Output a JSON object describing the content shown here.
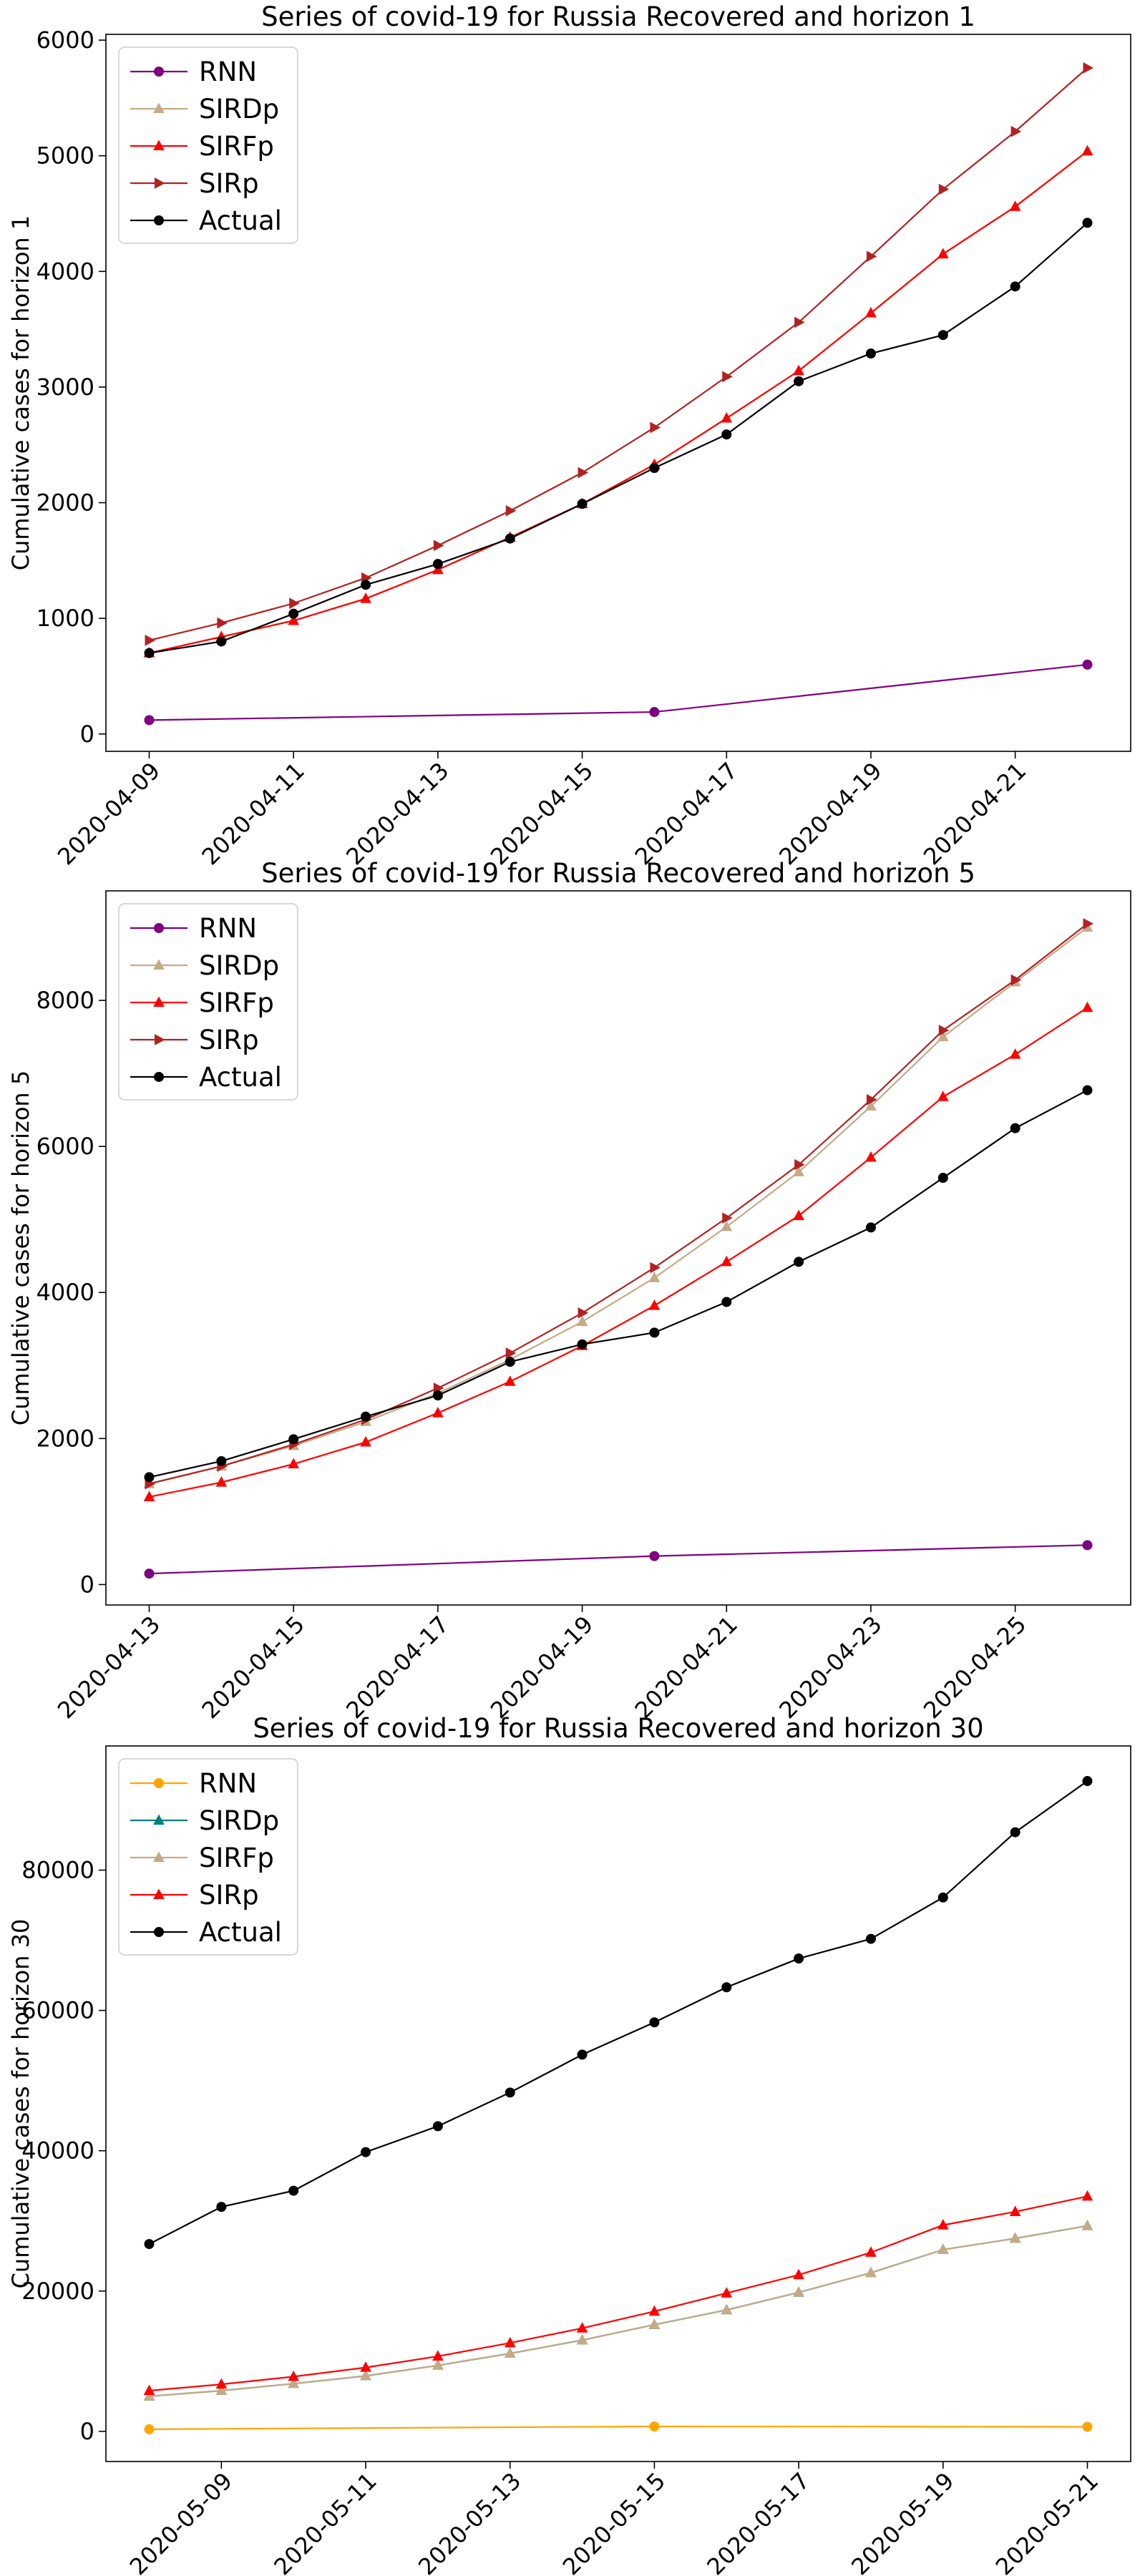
{
  "chart_data": [
    {
      "type": "line",
      "title": "Series of covid-19 for Russia Recovered and horizon 1",
      "xlabel": "",
      "ylabel": "Cumulative cases for horizon 1",
      "ylim": [
        -150,
        6050
      ],
      "yticks": [
        0,
        1000,
        2000,
        3000,
        4000,
        5000,
        6000
      ],
      "ytick_labels": [
        "0",
        "1000",
        "2000",
        "3000",
        "4000",
        "5000",
        "6000"
      ],
      "xlim": [
        "2020-04-08T09:36",
        "2020-04-22T14:24"
      ],
      "xtick_dates": [
        "2020-04-09",
        "2020-04-11",
        "2020-04-13",
        "2020-04-15",
        "2020-04-17",
        "2020-04-19",
        "2020-04-21"
      ],
      "xtick_labels": [
        "2020-04-09",
        "2020-04-11",
        "2020-04-13",
        "2020-04-15",
        "2020-04-17",
        "2020-04-19",
        "2020-04-21"
      ],
      "legend": "top-left",
      "grid": false,
      "series": [
        {
          "name": "RNN",
          "color": "#800080",
          "marker": "circle",
          "x": [
            "2020-04-09",
            "2020-04-16",
            "2020-04-22"
          ],
          "values": [
            120,
            190,
            600
          ]
        },
        {
          "name": "SIRDp",
          "color": "#c4aa88",
          "marker": "triangle-up",
          "x": [
            "2020-04-09",
            "2020-04-10",
            "2020-04-11",
            "2020-04-12",
            "2020-04-13",
            "2020-04-14",
            "2020-04-15",
            "2020-04-16",
            "2020-04-17",
            "2020-04-18",
            "2020-04-19",
            "2020-04-20",
            "2020-04-21",
            "2020-04-22"
          ],
          "values": [
            700,
            840,
            980,
            1170,
            1420,
            1700,
            1990,
            2330,
            2730,
            3140,
            3640,
            4150,
            4560,
            5040
          ]
        },
        {
          "name": "SIRFp",
          "color": "#ff0000",
          "marker": "triangle-up",
          "x": [
            "2020-04-09",
            "2020-04-10",
            "2020-04-11",
            "2020-04-12",
            "2020-04-13",
            "2020-04-14",
            "2020-04-15",
            "2020-04-16",
            "2020-04-17",
            "2020-04-18",
            "2020-04-19",
            "2020-04-20",
            "2020-04-21",
            "2020-04-22"
          ],
          "values": [
            700,
            840,
            980,
            1170,
            1420,
            1700,
            1990,
            2330,
            2730,
            3140,
            3640,
            4150,
            4560,
            5040
          ]
        },
        {
          "name": "SIRp",
          "color": "#b22222",
          "marker": "triangle-right",
          "x": [
            "2020-04-09",
            "2020-04-10",
            "2020-04-11",
            "2020-04-12",
            "2020-04-13",
            "2020-04-14",
            "2020-04-15",
            "2020-04-16",
            "2020-04-17",
            "2020-04-18",
            "2020-04-19",
            "2020-04-20",
            "2020-04-21",
            "2020-04-22"
          ],
          "values": [
            810,
            960,
            1130,
            1350,
            1630,
            1930,
            2260,
            2650,
            3090,
            3560,
            4130,
            4710,
            5210,
            5760
          ]
        },
        {
          "name": "Actual",
          "color": "#000000",
          "marker": "circle",
          "x": [
            "2020-04-09",
            "2020-04-10",
            "2020-04-11",
            "2020-04-12",
            "2020-04-13",
            "2020-04-14",
            "2020-04-15",
            "2020-04-16",
            "2020-04-17",
            "2020-04-18",
            "2020-04-19",
            "2020-04-20",
            "2020-04-21",
            "2020-04-22"
          ],
          "values": [
            700,
            800,
            1040,
            1290,
            1470,
            1690,
            1990,
            2300,
            2590,
            3050,
            3290,
            3450,
            3870,
            4420
          ]
        }
      ]
    },
    {
      "type": "line",
      "title": "Series of covid-19 for Russia Recovered and horizon 5",
      "xlabel": "",
      "ylabel": "Cumulative cases for horizon 5",
      "ylim": [
        -280,
        9500
      ],
      "yticks": [
        0,
        2000,
        4000,
        6000,
        8000
      ],
      "ytick_labels": [
        "0",
        "2000",
        "4000",
        "6000",
        "8000"
      ],
      "xlim": [
        "2020-04-12T09:36",
        "2020-04-26T14:24"
      ],
      "xtick_dates": [
        "2020-04-13",
        "2020-04-15",
        "2020-04-17",
        "2020-04-19",
        "2020-04-21",
        "2020-04-23",
        "2020-04-25"
      ],
      "xtick_labels": [
        "2020-04-13",
        "2020-04-15",
        "2020-04-17",
        "2020-04-19",
        "2020-04-21",
        "2020-04-23",
        "2020-04-25"
      ],
      "legend": "top-left",
      "grid": false,
      "series": [
        {
          "name": "RNN",
          "color": "#800080",
          "marker": "circle",
          "x": [
            "2020-04-13",
            "2020-04-20",
            "2020-04-26"
          ],
          "values": [
            150,
            390,
            540
          ]
        },
        {
          "name": "SIRDp",
          "color": "#c4aa88",
          "marker": "triangle-up",
          "x": [
            "2020-04-13",
            "2020-04-14",
            "2020-04-15",
            "2020-04-16",
            "2020-04-17",
            "2020-04-18",
            "2020-04-19",
            "2020-04-20",
            "2020-04-21",
            "2020-04-22",
            "2020-04-23",
            "2020-04-24",
            "2020-04-25",
            "2020-04-26"
          ],
          "values": [
            1380,
            1620,
            1900,
            2230,
            2620,
            3080,
            3600,
            4200,
            4900,
            5650,
            6550,
            7500,
            8250,
            9000
          ]
        },
        {
          "name": "SIRFp",
          "color": "#ff0000",
          "marker": "triangle-up",
          "x": [
            "2020-04-13",
            "2020-04-14",
            "2020-04-15",
            "2020-04-16",
            "2020-04-17",
            "2020-04-18",
            "2020-04-19",
            "2020-04-20",
            "2020-04-21",
            "2020-04-22",
            "2020-04-23",
            "2020-04-24",
            "2020-04-25",
            "2020-04-26"
          ],
          "values": [
            1200,
            1400,
            1650,
            1950,
            2350,
            2780,
            3270,
            3820,
            4420,
            5050,
            5850,
            6680,
            7260,
            7900
          ]
        },
        {
          "name": "SIRp",
          "color": "#b22222",
          "marker": "triangle-right",
          "x": [
            "2020-04-13",
            "2020-04-14",
            "2020-04-15",
            "2020-04-16",
            "2020-04-17",
            "2020-04-18",
            "2020-04-19",
            "2020-04-20",
            "2020-04-21",
            "2020-04-22",
            "2020-04-23",
            "2020-04-24",
            "2020-04-25",
            "2020-04-26"
          ],
          "values": [
            1380,
            1620,
            1920,
            2260,
            2690,
            3170,
            3720,
            4340,
            5020,
            5750,
            6640,
            7590,
            8280,
            9050
          ]
        },
        {
          "name": "Actual",
          "color": "#000000",
          "marker": "circle",
          "x": [
            "2020-04-13",
            "2020-04-14",
            "2020-04-15",
            "2020-04-16",
            "2020-04-17",
            "2020-04-18",
            "2020-04-19",
            "2020-04-20",
            "2020-04-21",
            "2020-04-22",
            "2020-04-23",
            "2020-04-24",
            "2020-04-25",
            "2020-04-26"
          ],
          "values": [
            1470,
            1690,
            1990,
            2300,
            2590,
            3050,
            3290,
            3450,
            3870,
            4420,
            4890,
            5570,
            6250,
            6770
          ]
        }
      ]
    },
    {
      "type": "line",
      "title": "Series of covid-19 for Russia Recovered and horizon 30",
      "xlabel": "",
      "ylabel": "Cumulative cases for horizon 30",
      "ylim": [
        -4300,
        97700
      ],
      "yticks": [
        0,
        20000,
        40000,
        60000,
        80000
      ],
      "ytick_labels": [
        "0",
        "20000",
        "40000",
        "60000",
        "80000"
      ],
      "xlim": [
        "2020-05-07T09:36",
        "2020-05-21T14:24"
      ],
      "xtick_dates": [
        "2020-05-09",
        "2020-05-11",
        "2020-05-13",
        "2020-05-15",
        "2020-05-17",
        "2020-05-19",
        "2020-05-21"
      ],
      "xtick_labels": [
        "2020-05-09",
        "2020-05-11",
        "2020-05-13",
        "2020-05-15",
        "2020-05-17",
        "2020-05-19",
        "2020-05-21"
      ],
      "legend": "top-left",
      "grid": false,
      "series": [
        {
          "name": "RNN",
          "color": "#ffa500",
          "marker": "circle",
          "x": [
            "2020-05-08",
            "2020-05-15",
            "2020-05-21"
          ],
          "values": [
            300,
            700,
            650
          ]
        },
        {
          "name": "SIRDp",
          "color": "#008080",
          "marker": "triangle-up",
          "x": [
            "2020-05-08",
            "2020-05-09",
            "2020-05-10",
            "2020-05-11",
            "2020-05-12",
            "2020-05-13",
            "2020-05-14",
            "2020-05-15",
            "2020-05-16",
            "2020-05-17",
            "2020-05-18",
            "2020-05-19",
            "2020-05-20",
            "2020-05-21"
          ],
          "values": [
            5000,
            5800,
            6800,
            7900,
            9400,
            11100,
            13000,
            15200,
            17300,
            19800,
            22600,
            25900,
            27500,
            29300
          ]
        },
        {
          "name": "SIRFp",
          "color": "#c4aa88",
          "marker": "triangle-up",
          "x": [
            "2020-05-08",
            "2020-05-09",
            "2020-05-10",
            "2020-05-11",
            "2020-05-12",
            "2020-05-13",
            "2020-05-14",
            "2020-05-15",
            "2020-05-16",
            "2020-05-17",
            "2020-05-18",
            "2020-05-19",
            "2020-05-20",
            "2020-05-21"
          ],
          "values": [
            5000,
            5800,
            6800,
            7900,
            9400,
            11100,
            13000,
            15200,
            17300,
            19800,
            22600,
            25900,
            27500,
            29300
          ]
        },
        {
          "name": "SIRp",
          "color": "#ff0000",
          "marker": "triangle-up",
          "x": [
            "2020-05-08",
            "2020-05-09",
            "2020-05-10",
            "2020-05-11",
            "2020-05-12",
            "2020-05-13",
            "2020-05-14",
            "2020-05-15",
            "2020-05-16",
            "2020-05-17",
            "2020-05-18",
            "2020-05-19",
            "2020-05-20",
            "2020-05-21"
          ],
          "values": [
            5800,
            6700,
            7800,
            9100,
            10700,
            12600,
            14700,
            17100,
            19700,
            22300,
            25500,
            29400,
            31300,
            33500
          ]
        },
        {
          "name": "Actual",
          "color": "#000000",
          "marker": "circle",
          "x": [
            "2020-05-08",
            "2020-05-09",
            "2020-05-10",
            "2020-05-11",
            "2020-05-12",
            "2020-05-13",
            "2020-05-14",
            "2020-05-15",
            "2020-05-16",
            "2020-05-17",
            "2020-05-18",
            "2020-05-19",
            "2020-05-20",
            "2020-05-21"
          ],
          "values": [
            26700,
            32000,
            34300,
            39800,
            43500,
            48300,
            53700,
            58300,
            63300,
            67400,
            70200,
            76100,
            85400,
            92700
          ]
        }
      ]
    }
  ]
}
